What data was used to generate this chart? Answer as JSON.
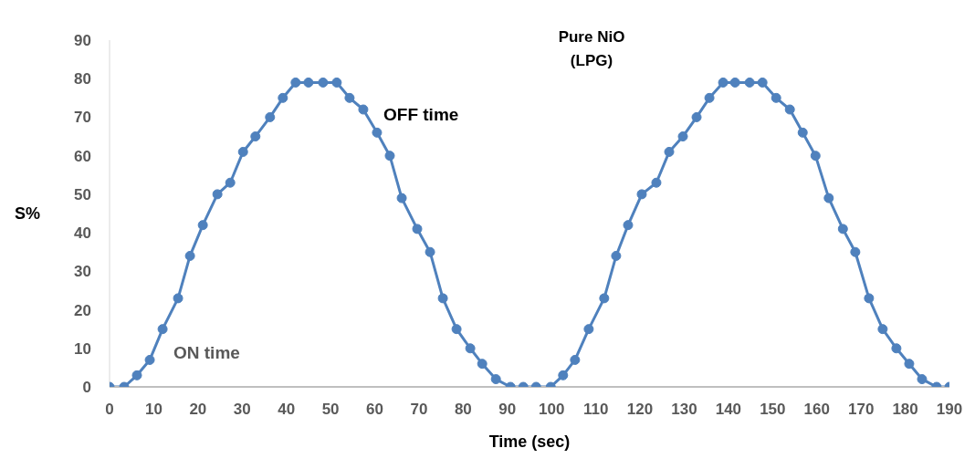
{
  "chart_data": {
    "type": "line",
    "title": "Pure NiO",
    "subtitle": "(LPG)",
    "xlabel": "Time (sec)",
    "ylabel": "S%",
    "x": [
      0,
      3.3,
      6.2,
      9.1,
      12.0,
      15.5,
      18.2,
      21.1,
      24.4,
      27.3,
      30.2,
      33.0,
      36.3,
      39.2,
      42.1,
      45.0,
      48.3,
      51.4,
      54.3,
      57.4,
      60.5,
      63.4,
      66.1,
      69.6,
      72.5,
      75.4,
      78.5,
      81.6,
      84.3,
      87.4,
      90.7,
      93.6,
      96.5,
      99.8,
      102.6,
      105.3,
      108.4,
      111.9,
      114.6,
      117.3,
      120.4,
      123.7,
      126.6,
      129.7,
      132.8,
      135.7,
      138.8,
      141.5,
      144.8,
      147.7,
      150.8,
      153.9,
      156.8,
      159.7,
      162.7,
      165.9,
      168.7,
      171.8,
      174.9,
      178.0,
      180.9,
      183.8,
      187.1,
      190.0
    ],
    "series": [
      {
        "color": "#4f81bd",
        "values": [
          0,
          0,
          3,
          7,
          15,
          23,
          34,
          42,
          50,
          53,
          61,
          65,
          70,
          75,
          79,
          79,
          79,
          79,
          75,
          72,
          66,
          60,
          49,
          41,
          35,
          23,
          15,
          10,
          6,
          2,
          0,
          0,
          0,
          0,
          3,
          7,
          15,
          23,
          34,
          42,
          50,
          53,
          61,
          65,
          70,
          75,
          79,
          79,
          79,
          79,
          75,
          72,
          66,
          60,
          49,
          41,
          35,
          23,
          15,
          10,
          6,
          2,
          0,
          0
        ]
      }
    ],
    "xlim": [
      0,
      190
    ],
    "xticks": [
      0,
      10,
      20,
      30,
      40,
      50,
      60,
      70,
      80,
      90,
      100,
      110,
      120,
      130,
      140,
      150,
      160,
      170,
      180,
      190
    ],
    "ylim": [
      0,
      90
    ],
    "yticks": [
      0,
      10,
      20,
      30,
      40,
      50,
      60,
      70,
      80,
      90
    ],
    "grid": false,
    "legend": false,
    "marker": "circle",
    "line_style": "solid",
    "annotations": [
      "OFF time",
      "ON time"
    ]
  }
}
